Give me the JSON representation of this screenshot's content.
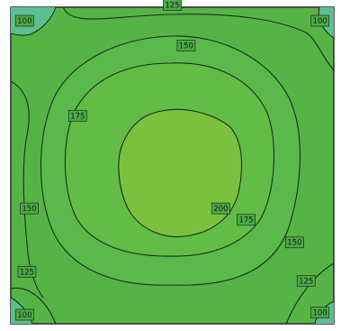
{
  "chart_data": {
    "type": "contour",
    "colors": {
      "band_100": "#5cbf8f",
      "band_125": "#56b447",
      "band_150": "#5ab94a",
      "band_175": "#63bc46",
      "band_200": "#7cc03f",
      "line": "#1a2e1a",
      "frame": "#333333"
    },
    "labels": [
      "100",
      "125",
      "150",
      "175",
      "200"
    ],
    "label_positions": [
      {
        "value": "100",
        "x": -3.2,
        "y": 3.2
      },
      {
        "value": "100",
        "x": 3.2,
        "y": 3.2
      },
      {
        "value": "100",
        "x": -3.2,
        "y": -3.3
      },
      {
        "value": "100",
        "x": 3.2,
        "y": -3.25
      },
      {
        "value": "125",
        "x": 0.0,
        "y": 3.55
      },
      {
        "value": "125",
        "x": -3.15,
        "y": -2.35
      },
      {
        "value": "125",
        "x": 2.9,
        "y": -2.55
      },
      {
        "value": "150",
        "x": 0.3,
        "y": 2.65
      },
      {
        "value": "150",
        "x": -3.1,
        "y": -0.95
      },
      {
        "value": "150",
        "x": 2.65,
        "y": -1.7
      },
      {
        "value": "175",
        "x": -2.05,
        "y": 1.1
      },
      {
        "value": "175",
        "x": 1.6,
        "y": -1.2
      },
      {
        "value": "200",
        "x": 1.05,
        "y": -0.95
      }
    ]
  }
}
